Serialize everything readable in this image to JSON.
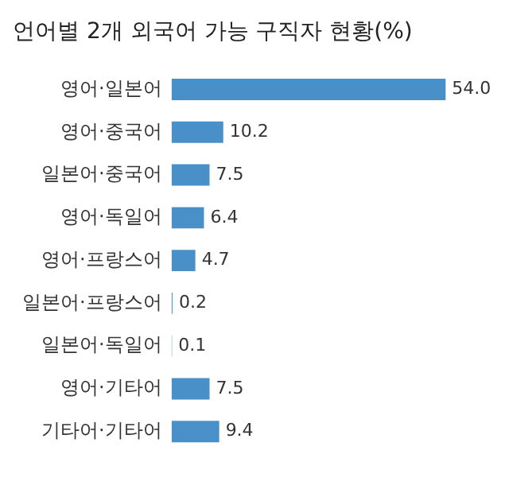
{
  "chart_data": {
    "type": "bar",
    "orientation": "horizontal",
    "title": "언어별 2개 외국어 가능 구직자 현황(%)",
    "categories": [
      "영어·일본어",
      "영어·중국어",
      "일본어·중국어",
      "영어·독일어",
      "영어·프랑스어",
      "일본어·프랑스어",
      "일본어·독일어",
      "영어·기타어",
      "기타어·기타어"
    ],
    "values": [
      54.0,
      10.2,
      7.5,
      6.4,
      4.7,
      0.2,
      0.1,
      7.5,
      9.4
    ],
    "value_labels": [
      "54.0",
      "10.2",
      "7.5",
      "6.4",
      "4.7",
      "0.2",
      "0.1",
      "7.5",
      "9.4"
    ],
    "color": "#4a90c8",
    "grid": false,
    "legend": false
  }
}
